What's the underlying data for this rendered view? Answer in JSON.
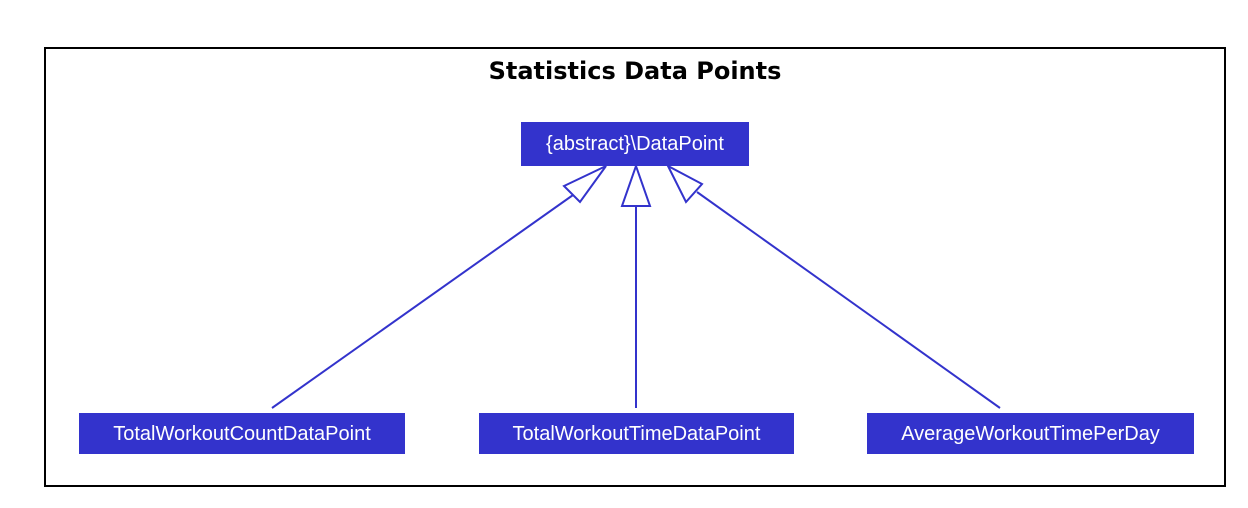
{
  "diagram": {
    "title": "Statistics Data Points",
    "parent": {
      "label": "{abstract}\\DataPoint"
    },
    "children": [
      {
        "label": "TotalWorkoutCountDataPoint"
      },
      {
        "label": "TotalWorkoutTimeDataPoint"
      },
      {
        "label": "AverageWorkoutTimePerDay"
      }
    ],
    "relationship": "inheritance",
    "colors": {
      "node_fill": "#3333cc",
      "node_text": "#ffffff",
      "edge": "#3333cc",
      "frame": "#000000"
    }
  }
}
